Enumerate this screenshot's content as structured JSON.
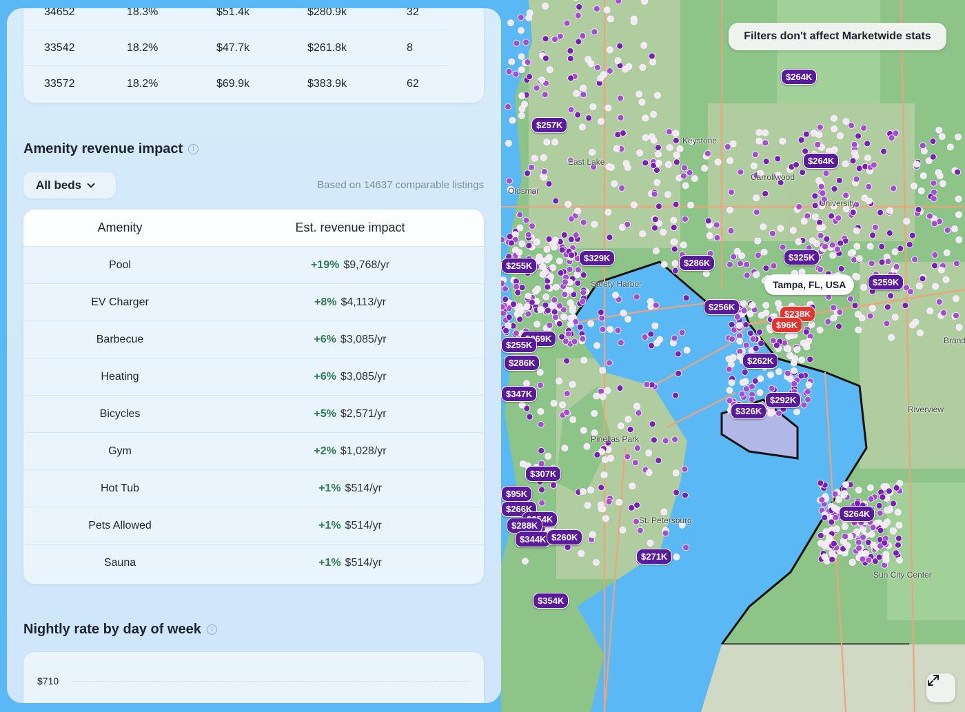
{
  "zip_table": {
    "rows": [
      {
        "zip": "34652",
        "pct": "18.3%",
        "revenue": "$51.4k",
        "price": "$280.9k",
        "count": "32"
      },
      {
        "zip": "33542",
        "pct": "18.2%",
        "revenue": "$47.7k",
        "price": "$261.8k",
        "count": "8"
      },
      {
        "zip": "33572",
        "pct": "18.2%",
        "revenue": "$69.9k",
        "price": "$383.9k",
        "count": "62"
      }
    ]
  },
  "amenity": {
    "title": "Amenity revenue impact",
    "beds_filter": "All beds",
    "based_on": "Based on 14637 comparable listings",
    "col_amenity": "Amenity",
    "col_impact": "Est. revenue impact",
    "rows": [
      {
        "name": "Pool",
        "pct": "+19%",
        "value": "$9,768/yr"
      },
      {
        "name": "EV Charger",
        "pct": "+8%",
        "value": "$4,113/yr"
      },
      {
        "name": "Barbecue",
        "pct": "+6%",
        "value": "$3,085/yr"
      },
      {
        "name": "Heating",
        "pct": "+6%",
        "value": "$3,085/yr"
      },
      {
        "name": "Bicycles",
        "pct": "+5%",
        "value": "$2,571/yr"
      },
      {
        "name": "Gym",
        "pct": "+2%",
        "value": "$1,028/yr"
      },
      {
        "name": "Hot Tub",
        "pct": "+1%",
        "value": "$514/yr"
      },
      {
        "name": "Pets Allowed",
        "pct": "+1%",
        "value": "$514/yr"
      },
      {
        "name": "Sauna",
        "pct": "+1%",
        "value": "$514/yr"
      }
    ]
  },
  "nightly": {
    "title": "Nightly rate by day of week",
    "top_tick": "$710"
  },
  "map": {
    "banner": "Filters don't affect Marketwide stats",
    "city": "Tampa, FL, USA",
    "places": [
      "East Lake",
      "Keystone",
      "Carrollwood",
      "University",
      "Riverview",
      "Sun City Center",
      "Brandon",
      "St. Petersburg",
      "Pinellas Park",
      "Oldsmar",
      "Safety Harbor"
    ],
    "price_tags": [
      "$264K",
      "$257K",
      "$264K",
      "$255K",
      "$329K",
      "$286K",
      "$325K",
      "$259K",
      "$256K",
      "$238K",
      "$96K",
      "$262K",
      "$269K",
      "$255K",
      "$286K",
      "$347K",
      "$292K",
      "$326K",
      "$307K",
      "$95K",
      "$266K",
      "$254K",
      "$288K",
      "$344K",
      "$260K",
      "$271K",
      "$354K",
      "$264K"
    ]
  },
  "colors": {
    "accent_purple": "#5a1a9e",
    "marker_red": "#e8322e",
    "positive_green": "#2f7d4e",
    "water": "#5ab8f5"
  }
}
